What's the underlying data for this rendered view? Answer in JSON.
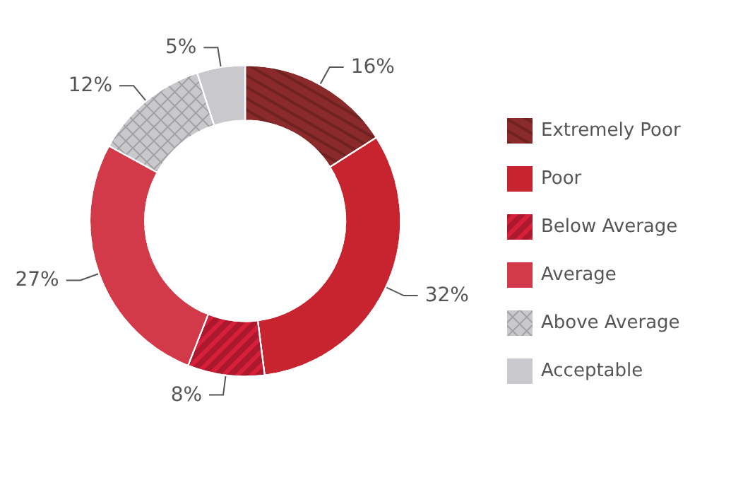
{
  "chart_data": {
    "type": "donut",
    "categories": [
      "Extremely Poor",
      "Poor",
      "Below Average",
      "Average",
      "Above Average",
      "Acceptable"
    ],
    "values": [
      16,
      32,
      8,
      27,
      12,
      5
    ],
    "value_labels": [
      "16%",
      "32%",
      "8%",
      "27%",
      "12%",
      "5%"
    ],
    "colors": [
      "#8b2a2a",
      "#c8242f",
      "#d71f3a",
      "#d23a4a",
      "#c9c8cc",
      "#c9c8cc"
    ],
    "legend": "right"
  }
}
